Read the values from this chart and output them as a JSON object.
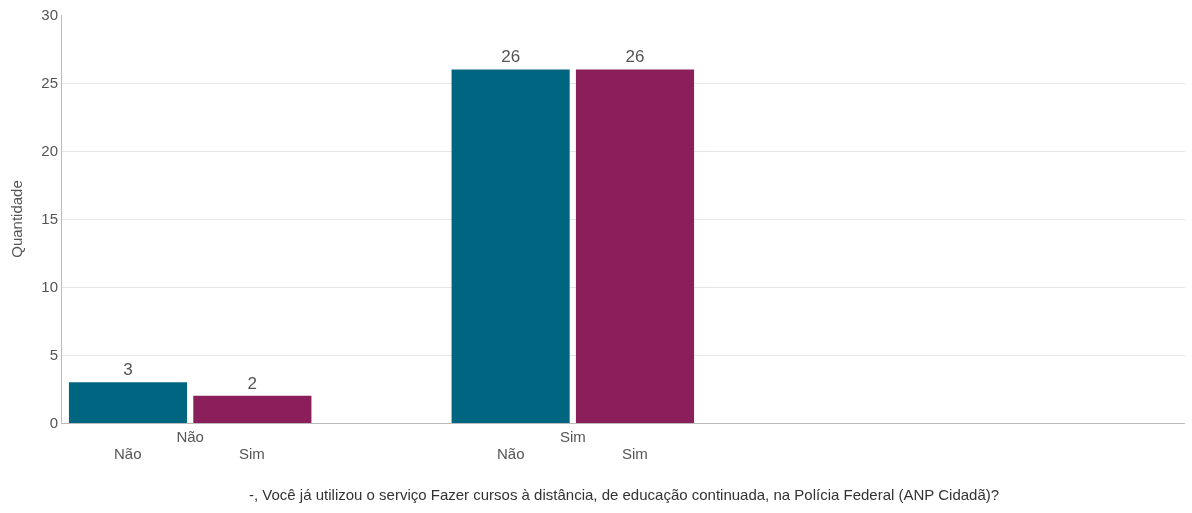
{
  "chart_data": {
    "type": "bar",
    "xlabel": "-, Você já utilizou o serviço Fazer cursos à distância, de educação continuada, na Polícia Federal (ANP Cidadã)?",
    "ylabel": "Quantidade",
    "categories": [
      "Não",
      "Sim"
    ],
    "series": [
      {
        "name": "Não",
        "color": "#006580",
        "values": [
          3,
          26
        ]
      },
      {
        "name": "Sim",
        "color": "#8a1f5c",
        "values": [
          2,
          26
        ]
      }
    ],
    "ylim": [
      0,
      30
    ],
    "yticks": [
      0,
      5,
      10,
      15,
      20,
      25,
      30
    ],
    "grid": "y",
    "data_labels": true,
    "legend": false
  }
}
